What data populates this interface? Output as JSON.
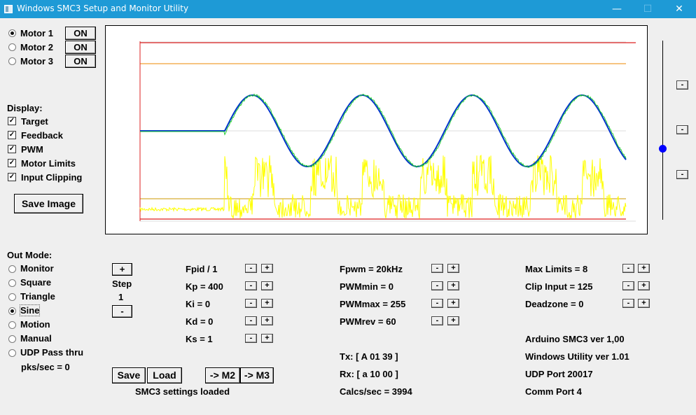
{
  "window": {
    "title": "Windows SMC3 Setup and Monitor Utility",
    "minimize": "—",
    "restore": "☐",
    "close": "✕"
  },
  "motors": [
    {
      "label": "Motor 1",
      "button": "ON",
      "selected": true
    },
    {
      "label": "Motor 2",
      "button": "ON",
      "selected": false
    },
    {
      "label": "Motor 3",
      "button": "ON",
      "selected": false
    }
  ],
  "display": {
    "heading": "Display:",
    "options": [
      {
        "label": "Target",
        "checked": true
      },
      {
        "label": "Feedback",
        "checked": true
      },
      {
        "label": "PWM",
        "checked": true
      },
      {
        "label": "Motor Limits",
        "checked": true
      },
      {
        "label": "Input Clipping",
        "checked": true
      }
    ],
    "save_image": "Save Image"
  },
  "out_mode": {
    "heading": "Out Mode:",
    "options": [
      {
        "label": "Monitor",
        "selected": false
      },
      {
        "label": "Square",
        "selected": false
      },
      {
        "label": "Triangle",
        "selected": false
      },
      {
        "label": "Sine",
        "selected": true
      },
      {
        "label": "Motion",
        "selected": false
      },
      {
        "label": "Manual",
        "selected": false
      },
      {
        "label": "UDP Pass thru",
        "selected": false
      }
    ],
    "pks_sec": "pks/sec = 0"
  },
  "step": {
    "plus": "+",
    "label": "Step",
    "value": "1",
    "minus": "-"
  },
  "pid_params": [
    "Fpid / 1",
    "Kp = 400",
    "Ki = 0",
    "Kd = 0",
    "Ks = 1"
  ],
  "pwm_params": [
    "Fpwm = 20kHz",
    "PWMmin = 0",
    "PWMmax = 255",
    "PWMrev = 60"
  ],
  "limit_params": [
    "Max Limits = 8",
    "Clip Input = 125",
    "Deadzone = 0"
  ],
  "spin": {
    "minus": "-",
    "plus": "+"
  },
  "comms": {
    "tx": "Tx: [ A 01 39 ]",
    "rx": "Rx: [ a 10 00 ]",
    "calcs": "Calcs/sec = 3994"
  },
  "info": {
    "arduino": "Arduino SMC3 ver 1,00",
    "utility": "Windows Utility ver 1.01",
    "udp": "UDP Port 20017",
    "comm": "Comm Port 4"
  },
  "actions": {
    "save": "Save",
    "load": "Load",
    "to_m2": "-> M2",
    "to_m3": "-> M3",
    "status": "SMC3 settings loaded"
  },
  "slider_buttons": [
    "-",
    "-",
    "-"
  ],
  "slider_position": 0.6,
  "colors": {
    "titlebar": "#1e9ad6",
    "target": "#0033cc",
    "feedback": "#22cc33",
    "pwm": "#ffff00",
    "motor_limits": "#dd2222",
    "input_clipping": "#ee8800",
    "pwm_ref": "#cc9900",
    "slider_knob": "#0000ff"
  }
}
